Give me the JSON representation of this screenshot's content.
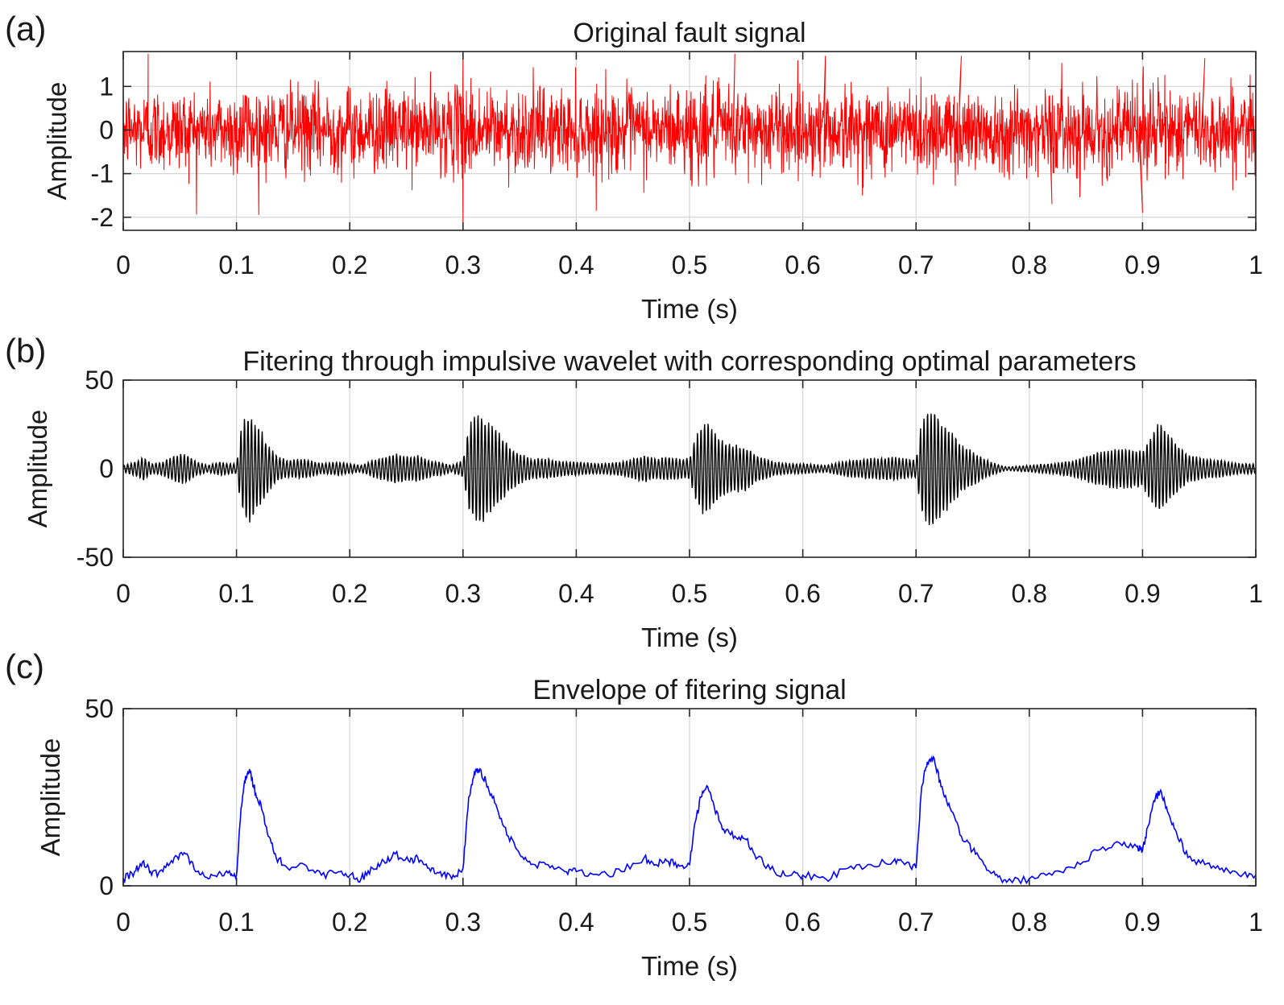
{
  "chart_data": [
    {
      "panel_label": "(a)",
      "type": "line",
      "title": "Original fault signal",
      "xlabel": "Time (s)",
      "ylabel": "Amplitude",
      "xlim": [
        0,
        1
      ],
      "ylim": [
        -2.3,
        1.8
      ],
      "xticks": [
        0,
        0.1,
        0.2,
        0.3,
        0.4,
        0.5,
        0.6,
        0.7,
        0.8,
        0.9,
        1
      ],
      "xtick_labels": [
        "0",
        "0.1",
        "0.2",
        "0.3",
        "0.4",
        "0.5",
        "0.6",
        "0.7",
        "0.8",
        "0.9",
        "1"
      ],
      "yticks": [
        -2,
        -1,
        0,
        1
      ],
      "ytick_labels": [
        "-2",
        "-1",
        "0",
        "1"
      ],
      "grid": true,
      "color": "#ff0000",
      "series": [
        {
          "signal_kind": "noise",
          "x_start": 0,
          "x_end": 1,
          "samples": 3000,
          "noise_std": 0.48,
          "impulse_times": [
            0.1,
            0.3,
            0.5,
            0.7,
            0.9
          ],
          "peaks": [
            {
              "x": 0.022,
              "y": 1.75
            },
            {
              "x": 0.3,
              "y": -2.3
            },
            {
              "x": 0.3,
              "y": 1.72
            },
            {
              "x": 0.54,
              "y": 1.75
            },
            {
              "x": 0.62,
              "y": 1.7
            },
            {
              "x": 0.74,
              "y": 1.7
            },
            {
              "x": 0.82,
              "y": -1.7
            },
            {
              "x": 0.9,
              "y": -1.9
            },
            {
              "x": 0.955,
              "y": 1.65
            }
          ]
        }
      ]
    },
    {
      "panel_label": "(b)",
      "type": "line",
      "title": "Fitering through impulsive wavelet with corresponding optimal parameters",
      "xlabel": "Time (s)",
      "ylabel": "Amplitude",
      "xlim": [
        0,
        1
      ],
      "ylim": [
        -50,
        50
      ],
      "xticks": [
        0,
        0.1,
        0.2,
        0.3,
        0.4,
        0.5,
        0.6,
        0.7,
        0.8,
        0.9,
        1
      ],
      "xtick_labels": [
        "0",
        "0.1",
        "0.2",
        "0.3",
        "0.4",
        "0.5",
        "0.6",
        "0.7",
        "0.8",
        "0.9",
        "1"
      ],
      "yticks": [
        -50,
        0,
        50
      ],
      "ytick_labels": [
        "-50",
        "0",
        "50"
      ],
      "grid": true,
      "color": "#000000",
      "series": [
        {
          "signal_kind": "oscillation-with-envelope",
          "x_start": 0,
          "x_end": 1,
          "samples": 3000,
          "carrier_cycles": 320,
          "envelope_source": "panel-c"
        }
      ]
    },
    {
      "panel_label": "(c)",
      "type": "line",
      "title": "Envelope of fitering signal",
      "xlabel": "Time (s)",
      "ylabel": "Amplitude",
      "xlim": [
        0,
        1
      ],
      "ylim": [
        0,
        50
      ],
      "xticks": [
        0,
        0.1,
        0.2,
        0.3,
        0.4,
        0.5,
        0.6,
        0.7,
        0.8,
        0.9,
        1
      ],
      "xtick_labels": [
        "0",
        "0.1",
        "0.2",
        "0.3",
        "0.4",
        "0.5",
        "0.6",
        "0.7",
        "0.8",
        "0.9",
        "1"
      ],
      "yticks": [
        0,
        50
      ],
      "ytick_labels": [
        "0",
        "50"
      ],
      "grid": true,
      "color": "#0000ff",
      "series": [
        {
          "signal_kind": "envelope",
          "x": [
            0,
            0.01,
            0.018,
            0.025,
            0.035,
            0.045,
            0.055,
            0.065,
            0.075,
            0.085,
            0.095,
            0.1,
            0.104,
            0.108,
            0.112,
            0.117,
            0.122,
            0.128,
            0.135,
            0.145,
            0.16,
            0.175,
            0.19,
            0.2,
            0.21,
            0.22,
            0.23,
            0.24,
            0.252,
            0.26,
            0.27,
            0.28,
            0.29,
            0.3,
            0.305,
            0.31,
            0.315,
            0.322,
            0.33,
            0.34,
            0.35,
            0.36,
            0.375,
            0.39,
            0.4,
            0.42,
            0.44,
            0.46,
            0.47,
            0.48,
            0.49,
            0.5,
            0.505,
            0.51,
            0.516,
            0.522,
            0.53,
            0.54,
            0.55,
            0.56,
            0.575,
            0.59,
            0.6,
            0.62,
            0.64,
            0.66,
            0.68,
            0.69,
            0.7,
            0.705,
            0.71,
            0.716,
            0.722,
            0.73,
            0.74,
            0.75,
            0.76,
            0.77,
            0.78,
            0.8,
            0.82,
            0.84,
            0.86,
            0.88,
            0.895,
            0.9,
            0.905,
            0.91,
            0.916,
            0.922,
            0.93,
            0.94,
            0.955,
            0.97,
            0.985,
            1
          ],
          "y": [
            2,
            4,
            7,
            3,
            4,
            8,
            9,
            4,
            2,
            4,
            3,
            3,
            22,
            31,
            32,
            26,
            22,
            14,
            8,
            5,
            6,
            3,
            4,
            3,
            2,
            5,
            7,
            9,
            7,
            8,
            5,
            4,
            2,
            5,
            25,
            32,
            33,
            28,
            22,
            14,
            9,
            6,
            6,
            4,
            4,
            3,
            4,
            8,
            6,
            7,
            6,
            6,
            18,
            25,
            28,
            22,
            16,
            14,
            13,
            8,
            4,
            3,
            3,
            2,
            5,
            6,
            7,
            6,
            5,
            28,
            35,
            36,
            28,
            22,
            14,
            10,
            6,
            3,
            1,
            2,
            3,
            5,
            10,
            12,
            11,
            10,
            17,
            24,
            27,
            21,
            15,
            8,
            6,
            5,
            3,
            3
          ]
        }
      ]
    }
  ]
}
